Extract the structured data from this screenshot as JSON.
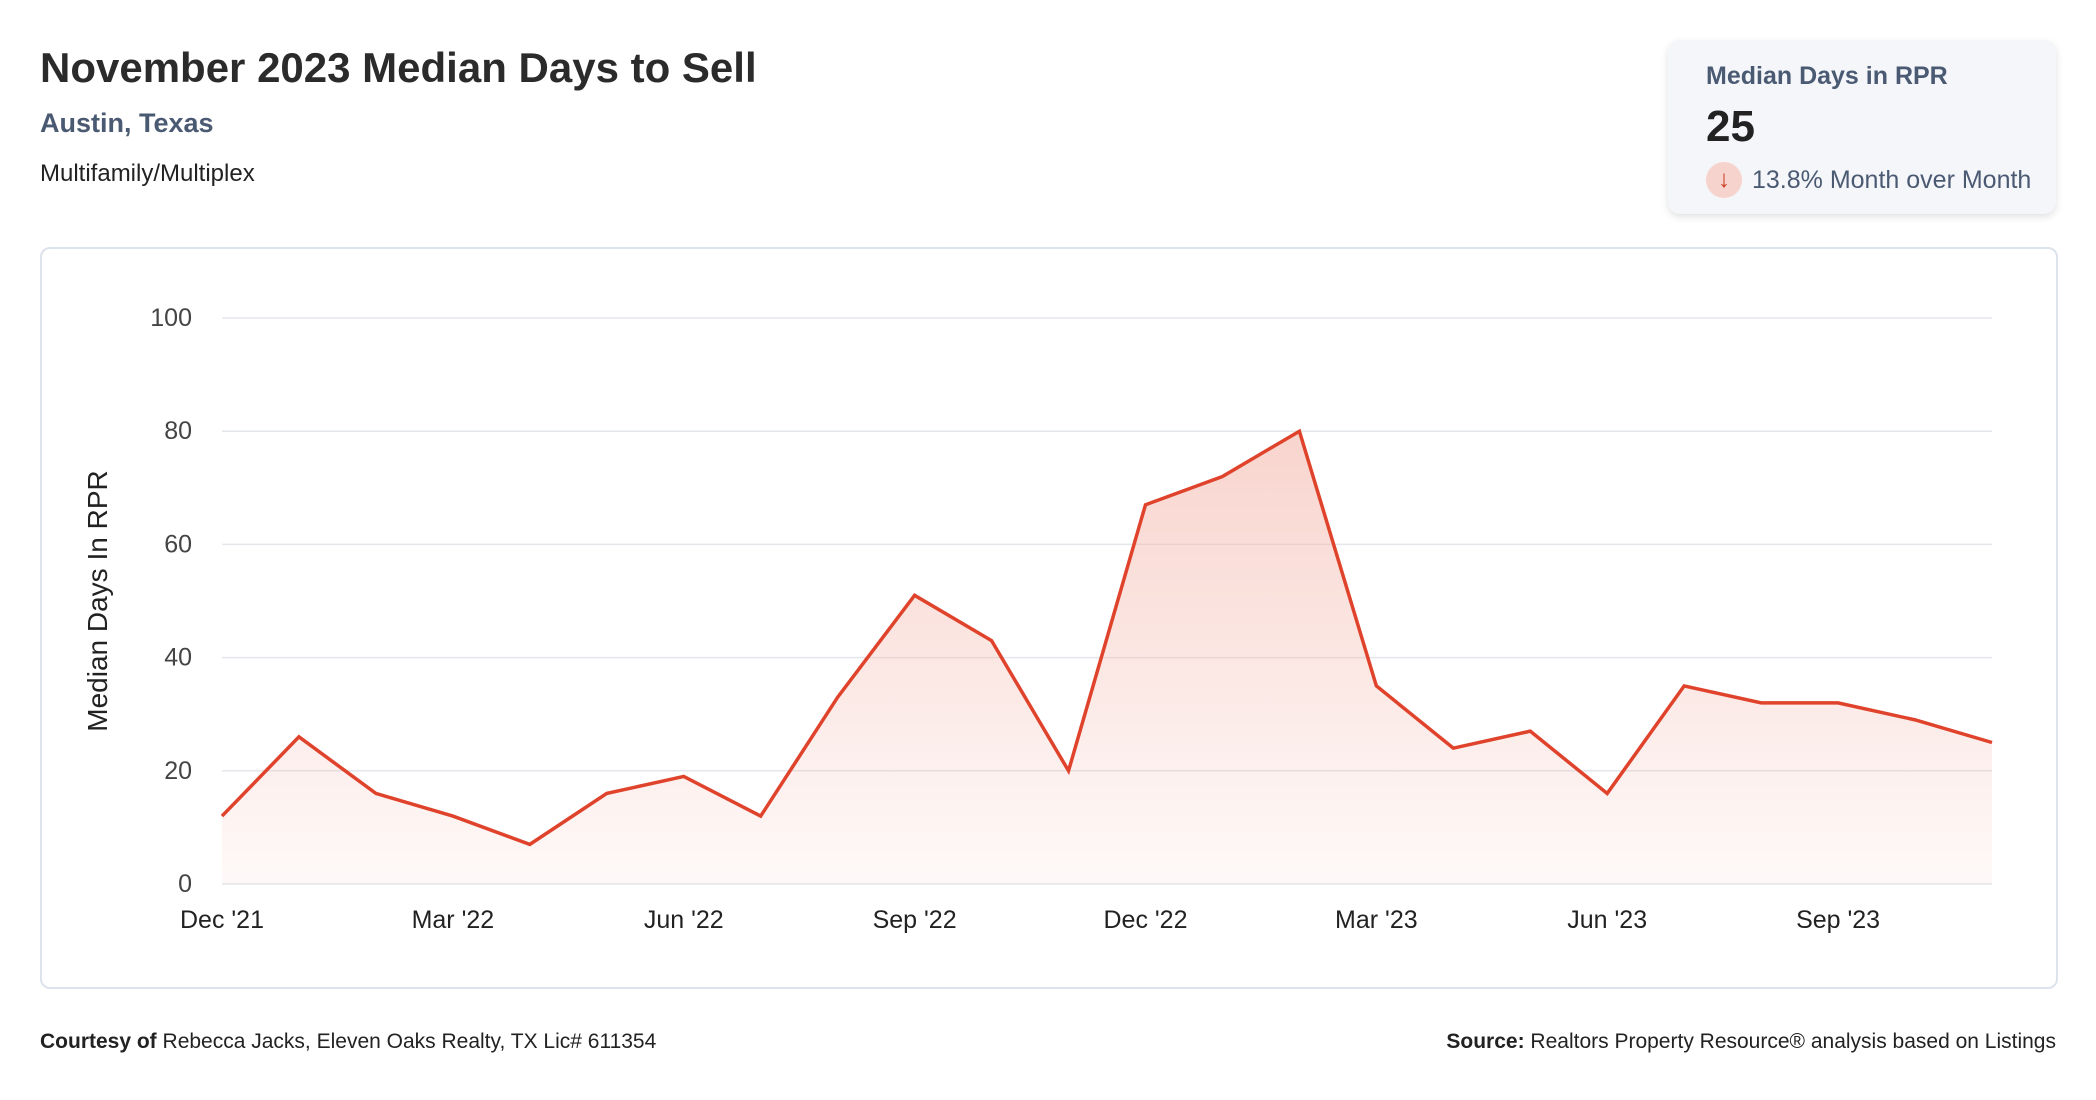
{
  "header": {
    "title": "November 2023 Median Days to Sell",
    "location": "Austin, Texas",
    "property_type": "Multifamily/Multiplex"
  },
  "card": {
    "label": "Median Days in RPR",
    "value": "25",
    "change": "13.8% Month over Month",
    "direction": "down",
    "arrow_icon": "arrow-down-icon"
  },
  "footer": {
    "courtesy_label": "Courtesy of",
    "courtesy_text": "Rebecca Jacks, Eleven Oaks Realty, TX Lic# 611354",
    "source_label": "Source:",
    "source_text": "Realtors Property Resource® analysis based on Listings"
  },
  "chart_data": {
    "type": "area",
    "title": "November 2023 Median Days to Sell",
    "xlabel": "",
    "ylabel": "Median Days In RPR",
    "ylim": [
      0,
      100
    ],
    "yticks": [
      0,
      20,
      40,
      60,
      80,
      100
    ],
    "x": [
      "Dec '21",
      "Jan '22",
      "Feb '22",
      "Mar '22",
      "Apr '22",
      "May '22",
      "Jun '22",
      "Jul '22",
      "Aug '22",
      "Sep '22",
      "Oct '22",
      "Nov '22",
      "Dec '22",
      "Jan '23",
      "Feb '23",
      "Mar '23",
      "Apr '23",
      "May '23",
      "Jun '23",
      "Jul '23",
      "Aug '23",
      "Sep '23",
      "Oct '23",
      "Nov '23"
    ],
    "xticks": [
      "Dec '21",
      "Mar '22",
      "Jun '22",
      "Sep '22",
      "Dec '22",
      "Mar '23",
      "Jun '23",
      "Sep '23"
    ],
    "values": [
      12,
      26,
      16,
      12,
      7,
      16,
      19,
      12,
      33,
      51,
      43,
      20,
      67,
      72,
      80,
      35,
      24,
      27,
      16,
      35,
      32,
      32,
      29,
      25
    ],
    "color": "#e0432c",
    "grid": true
  }
}
